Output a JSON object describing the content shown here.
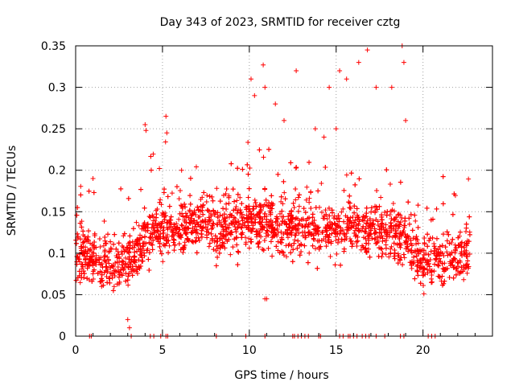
{
  "chart_data": {
    "type": "scatter",
    "title": "Day 343 of 2023, SRMTID for receiver cztg",
    "xlabel": "GPS time / hours",
    "ylabel": "SRMTID / TECUs",
    "xlim": [
      0,
      24
    ],
    "ylim": [
      0,
      0.35
    ],
    "xticks": [
      0,
      5,
      10,
      15,
      20
    ],
    "xtick_labels": [
      "0",
      "5",
      "10",
      "15",
      "20"
    ],
    "yticks": [
      0,
      0.05,
      0.1,
      0.15,
      0.2,
      0.25,
      0.3,
      0.35
    ],
    "ytick_labels": [
      "0",
      "0.05",
      "0.1",
      "0.15",
      "0.2",
      "0.25",
      "0.3",
      "0.35"
    ],
    "grid": true,
    "marker": "+",
    "color": "#ff0000",
    "trend": {
      "x": [
        0,
        1,
        2,
        2.6,
        3.2,
        4,
        5,
        6,
        7,
        8,
        9,
        10,
        11,
        12,
        13,
        14,
        15,
        16,
        17,
        18,
        19,
        20,
        21,
        22,
        22.7
      ],
      "y": [
        0.1,
        0.095,
        0.088,
        0.085,
        0.095,
        0.12,
        0.13,
        0.13,
        0.14,
        0.13,
        0.135,
        0.14,
        0.135,
        0.13,
        0.13,
        0.13,
        0.13,
        0.13,
        0.13,
        0.125,
        0.115,
        0.09,
        0.09,
        0.095,
        0.1
      ]
    },
    "outliers": [
      [
        4.0,
        0.255
      ],
      [
        4.05,
        0.248
      ],
      [
        5.2,
        0.265
      ],
      [
        5.25,
        0.245
      ],
      [
        6.1,
        0.2
      ],
      [
        10.1,
        0.31
      ],
      [
        10.3,
        0.29
      ],
      [
        10.8,
        0.327
      ],
      [
        10.9,
        0.3
      ],
      [
        11.5,
        0.28
      ],
      [
        12.0,
        0.26
      ],
      [
        12.7,
        0.32
      ],
      [
        13.8,
        0.25
      ],
      [
        14.6,
        0.3
      ],
      [
        15.0,
        0.25
      ],
      [
        15.2,
        0.32
      ],
      [
        15.6,
        0.31
      ],
      [
        16.3,
        0.33
      ],
      [
        16.8,
        0.345
      ],
      [
        17.3,
        0.3
      ],
      [
        18.2,
        0.3
      ],
      [
        18.8,
        0.35
      ],
      [
        18.9,
        0.33
      ],
      [
        19.0,
        0.26
      ],
      [
        3.0,
        0.02
      ],
      [
        3.1,
        0.01
      ],
      [
        10.9,
        0.045
      ],
      [
        11.0,
        0.045
      ],
      [
        1.0,
        0.19
      ],
      [
        14.3,
        0.24
      ]
    ],
    "baseline_x": [
      0.8,
      0.9,
      3.2,
      4.3,
      4.5,
      4.9,
      5.2,
      5.3,
      8.1,
      9.8,
      10.9,
      12.5,
      12.6,
      12.8,
      13.0,
      13.2,
      13.4,
      14.0,
      14.1,
      15.2,
      15.4,
      15.7,
      15.8,
      16.0,
      16.2,
      16.5,
      16.7,
      16.9,
      17.3,
      17.8,
      18.7,
      18.9,
      20.3,
      20.5,
      20.7
    ],
    "point_count": 3200
  }
}
